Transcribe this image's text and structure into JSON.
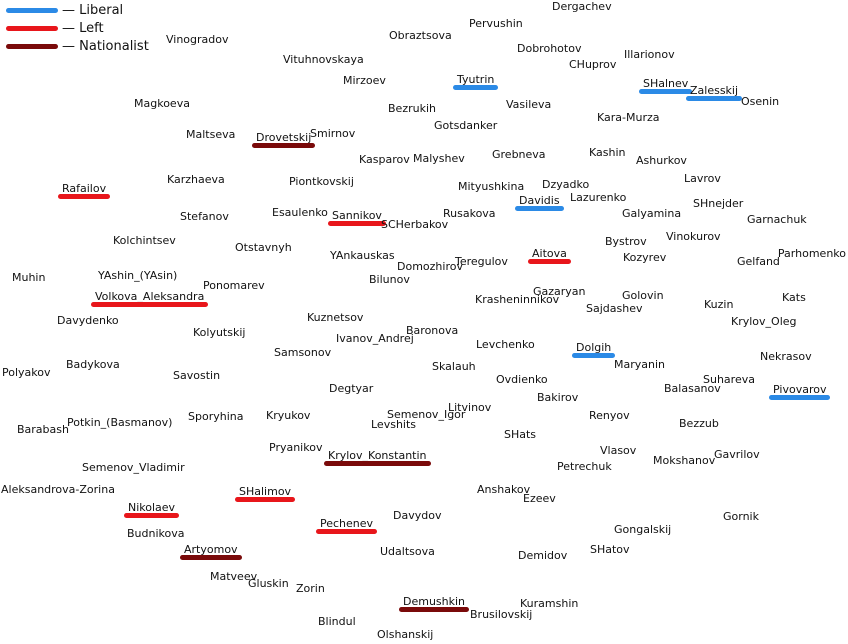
{
  "legend": [
    {
      "key": "liberal",
      "label": "— Liberal",
      "color": "#2b8ae6"
    },
    {
      "key": "left",
      "label": "— Left",
      "color": "#e8161b"
    },
    {
      "key": "nationalist",
      "label": "— Nationalist",
      "color": "#7a0a0a"
    }
  ],
  "nodes": [
    {
      "name": "Dergachev"
    },
    {
      "name": "Pervushin"
    },
    {
      "name": "Vinogradov"
    },
    {
      "name": "Obraztsova"
    },
    {
      "name": "Dobrohotov"
    },
    {
      "name": "Illarionov"
    },
    {
      "name": "Vituhnovskaya"
    },
    {
      "name": "CHuprov"
    },
    {
      "name": "Mirzoev"
    },
    {
      "name": "Tyutrin",
      "group": "liberal"
    },
    {
      "name": "SHalnev",
      "group": "liberal"
    },
    {
      "name": "Zalesskij",
      "group": "liberal"
    },
    {
      "name": "Osenin"
    },
    {
      "name": "Magkoeva"
    },
    {
      "name": "Vasileva"
    },
    {
      "name": "Bezrukih"
    },
    {
      "name": "Kara-Murza"
    },
    {
      "name": "Gotsdanker"
    },
    {
      "name": "Maltseva"
    },
    {
      "name": "Drovetskij",
      "group": "nationalist"
    },
    {
      "name": "Smirnov"
    },
    {
      "name": "Kashin"
    },
    {
      "name": "Grebneva"
    },
    {
      "name": "Kasparov"
    },
    {
      "name": "Malyshev"
    },
    {
      "name": "Ashurkov"
    },
    {
      "name": "Karzhaeva"
    },
    {
      "name": "Piontkovskij"
    },
    {
      "name": "Lavrov"
    },
    {
      "name": "Mityushkina"
    },
    {
      "name": "Dzyadko"
    },
    {
      "name": "Rafailov",
      "group": "left"
    },
    {
      "name": "Lazurenko"
    },
    {
      "name": "Davidis",
      "group": "liberal"
    },
    {
      "name": "SHnejder"
    },
    {
      "name": "Esaulenko"
    },
    {
      "name": "Sannikov",
      "group": "left"
    },
    {
      "name": "Rusakova"
    },
    {
      "name": "Galyamina"
    },
    {
      "name": "Stefanov"
    },
    {
      "name": "SCHerbakov"
    },
    {
      "name": "Garnachuk"
    },
    {
      "name": "Vinokurov"
    },
    {
      "name": "Kolchintsev"
    },
    {
      "name": "Bystrov"
    },
    {
      "name": "Otstavnyh"
    },
    {
      "name": "Aitova",
      "group": "left"
    },
    {
      "name": "Parhomenko"
    },
    {
      "name": "YAnkauskas"
    },
    {
      "name": "Teregulov"
    },
    {
      "name": "Kozyrev"
    },
    {
      "name": "Gelfand"
    },
    {
      "name": "Domozhirov"
    },
    {
      "name": "Muhin"
    },
    {
      "name": "YAshin_(YAsin)"
    },
    {
      "name": "Bilunov"
    },
    {
      "name": "Ponomarev"
    },
    {
      "name": "Gazaryan"
    },
    {
      "name": "Volkova_Aleksandra",
      "group": "left"
    },
    {
      "name": "Krasheninnikov"
    },
    {
      "name": "Golovin"
    },
    {
      "name": "Kats"
    },
    {
      "name": "Sajdashev"
    },
    {
      "name": "Kuzin"
    },
    {
      "name": "Davydenko"
    },
    {
      "name": "Kuznetsov"
    },
    {
      "name": "Krylov_Oleg"
    },
    {
      "name": "Kolyutskij"
    },
    {
      "name": "Baronova"
    },
    {
      "name": "Ivanov_Andrej"
    },
    {
      "name": "Levchenko"
    },
    {
      "name": "Samsonov"
    },
    {
      "name": "Dolgih",
      "group": "liberal"
    },
    {
      "name": "Nekrasov"
    },
    {
      "name": "Badykova"
    },
    {
      "name": "Maryanin"
    },
    {
      "name": "Polyakov"
    },
    {
      "name": "Skalauh"
    },
    {
      "name": "Savostin"
    },
    {
      "name": "Ovdienko"
    },
    {
      "name": "Suhareva"
    },
    {
      "name": "Degtyar"
    },
    {
      "name": "Balasanov"
    },
    {
      "name": "Pivovarov",
      "group": "liberal"
    },
    {
      "name": "Bakirov"
    },
    {
      "name": "Litvinov"
    },
    {
      "name": "Sporyhina"
    },
    {
      "name": "Kryukov"
    },
    {
      "name": "Semenov_Igor"
    },
    {
      "name": "Renyov"
    },
    {
      "name": "Potkin_(Basmanov)"
    },
    {
      "name": "Levshits"
    },
    {
      "name": "Bezzub"
    },
    {
      "name": "Barabash"
    },
    {
      "name": "SHats"
    },
    {
      "name": "Pryanikov"
    },
    {
      "name": "Vlasov"
    },
    {
      "name": "Gavrilov"
    },
    {
      "name": "Krylov_Konstantin",
      "group": "nationalist"
    },
    {
      "name": "Mokshanov"
    },
    {
      "name": "Petrechuk"
    },
    {
      "name": "Semenov_Vladimir"
    },
    {
      "name": "Aleksandrova-Zorina"
    },
    {
      "name": "Anshakov"
    },
    {
      "name": "SHalimov",
      "group": "left"
    },
    {
      "name": "Ezeev"
    },
    {
      "name": "Nikolaev",
      "group": "left"
    },
    {
      "name": "Gornik"
    },
    {
      "name": "Davydov"
    },
    {
      "name": "Pechenev",
      "group": "left"
    },
    {
      "name": "Gongalskij"
    },
    {
      "name": "Budnikova"
    },
    {
      "name": "SHatov"
    },
    {
      "name": "Artyomov",
      "group": "nationalist"
    },
    {
      "name": "Udaltsova"
    },
    {
      "name": "Demidov"
    },
    {
      "name": "Matveev"
    },
    {
      "name": "Gluskin"
    },
    {
      "name": "Zorin"
    },
    {
      "name": "Demushkin",
      "group": "nationalist"
    },
    {
      "name": "Kuramshin"
    },
    {
      "name": "Brusilovskij"
    },
    {
      "name": "Blindul"
    },
    {
      "name": "Olshanskij"
    }
  ]
}
